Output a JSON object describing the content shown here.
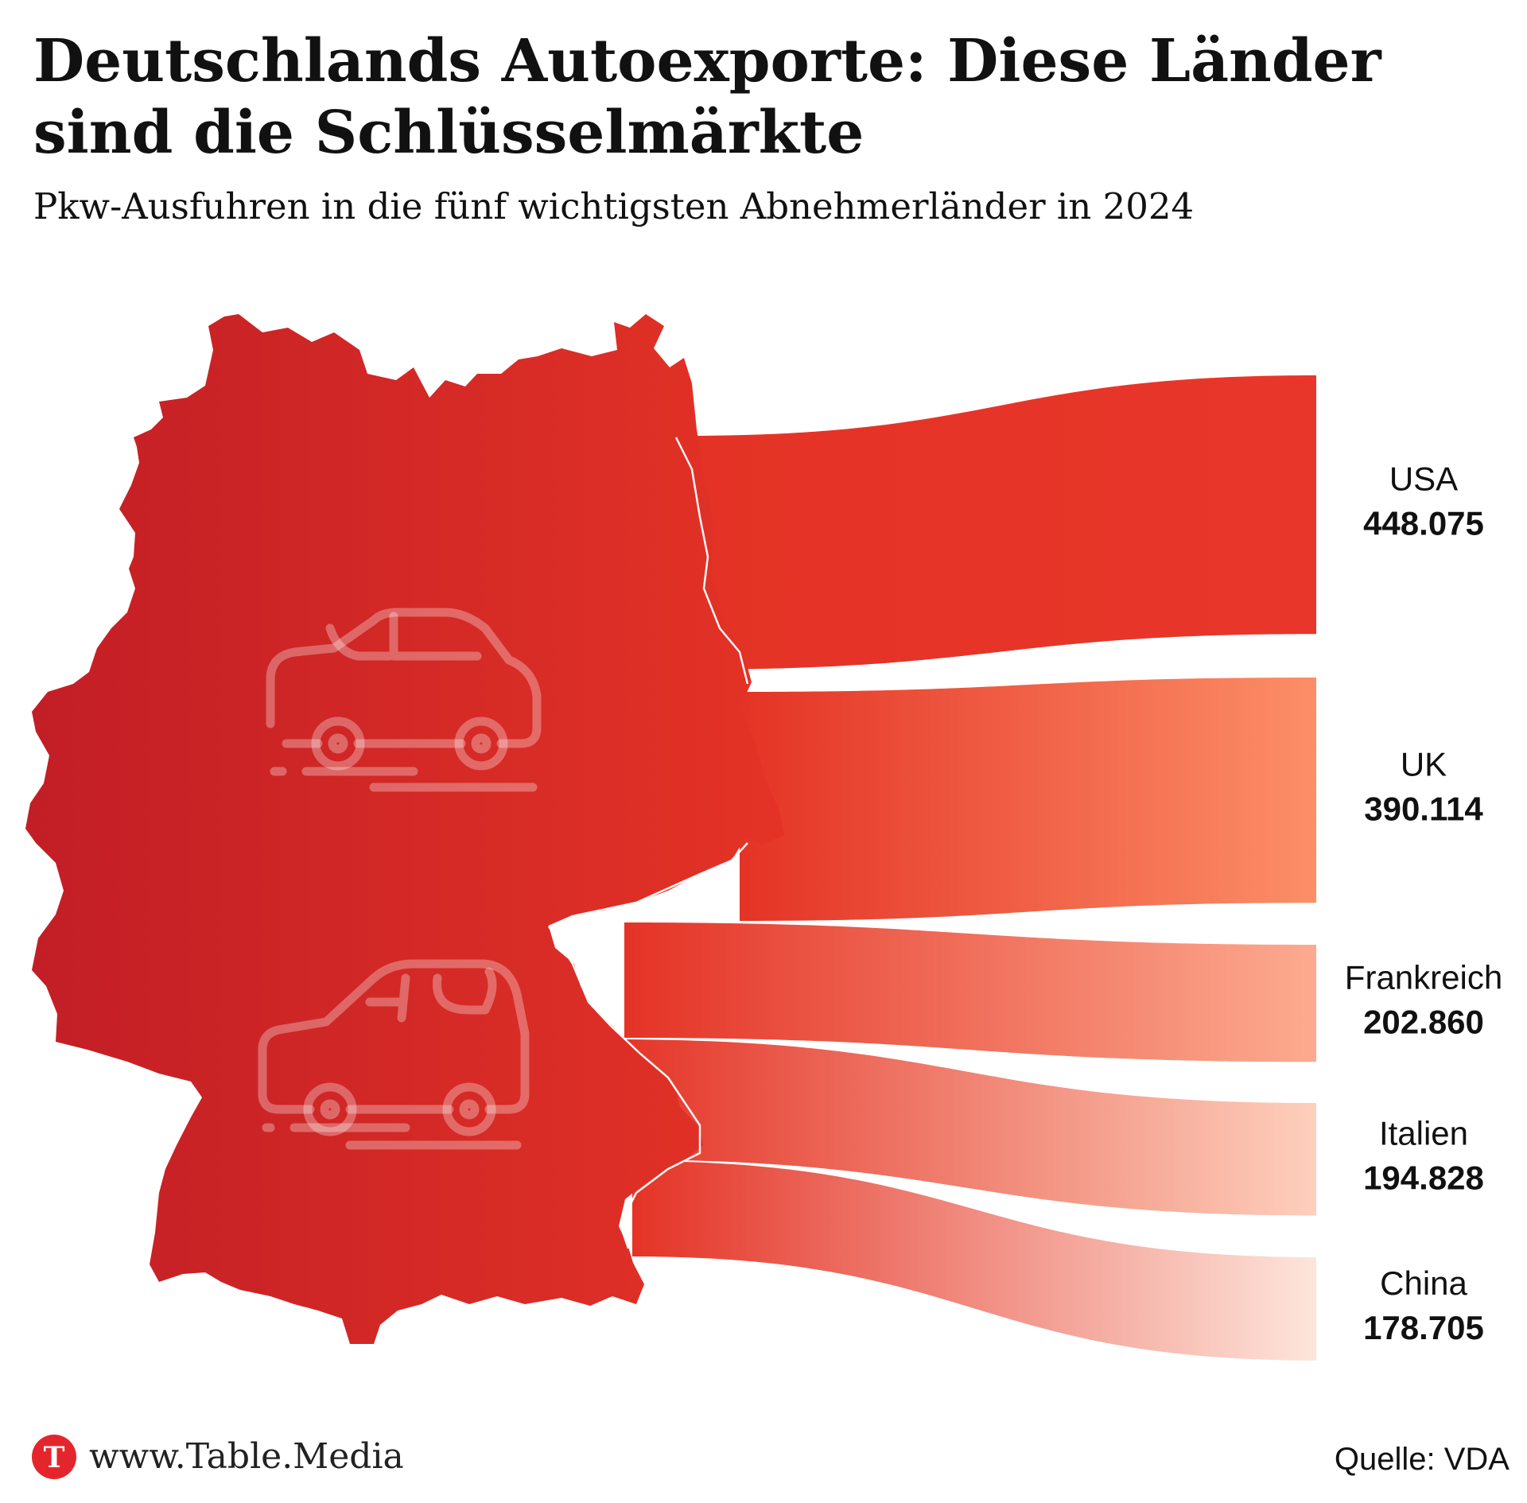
{
  "header": {
    "title": "Deutschlands Autoexporte: Diese Länder sind die Schlüsselmärkte",
    "subtitle": "Pkw-Ausfuhren in die fünf wichtigsten Abnehmerländer in 2024"
  },
  "chart_data": {
    "type": "sankey",
    "title": "Deutschlands Autoexporte: Diese Länder sind die Schlüsselmärkte",
    "subtitle": "Pkw-Ausfuhren in die fünf wichtigsten Abnehmerländer in 2024",
    "categories": [
      "USA",
      "UK",
      "Frankreich",
      "Italien",
      "China"
    ],
    "values": [
      448075,
      390114,
      202860,
      194828,
      178705
    ],
    "value_labels": [
      "448.075",
      "390.114",
      "202.860",
      "194.828",
      "178.705"
    ],
    "colors": [
      "#e8372a",
      "#fc8f67",
      "#fcab90",
      "#fdd0bd",
      "#fde5db"
    ],
    "map_colors": {
      "west": "#c21e26",
      "east": "#e43326"
    },
    "icons": [
      "car-icon",
      "car-icon"
    ]
  },
  "footer": {
    "url": "www.Table.Media",
    "source": "Quelle: VDA",
    "logo_letter": "T"
  }
}
